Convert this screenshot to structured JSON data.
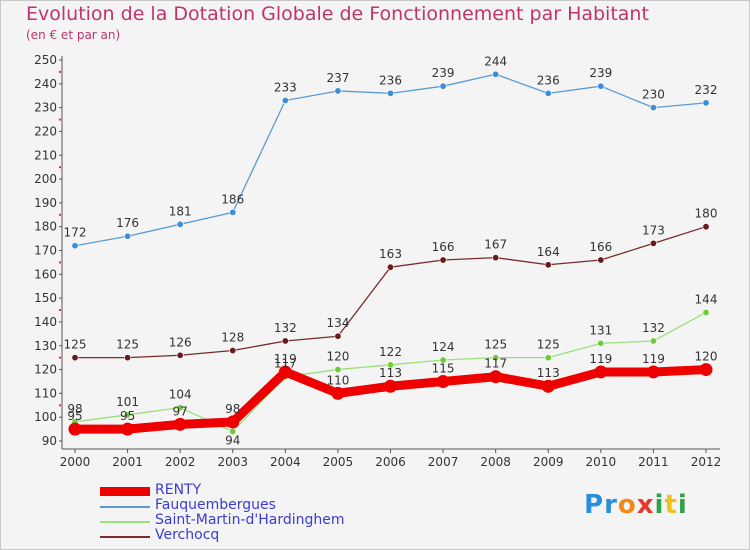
{
  "title": "Evolution de la Dotation Globale de Fonctionnement par Habitant",
  "subtitle": "(en € et par an)",
  "logo_text": "Proxiti",
  "chart_data": {
    "type": "line",
    "title": "Evolution de la Dotation Globale de Fonctionnement par Habitant",
    "ylabel": "(en € et par an)",
    "xlabel": "",
    "ylim": [
      90,
      250
    ],
    "ytick_step": 10,
    "grid": false,
    "legend": "bottom-left",
    "x": [
      "2000",
      "2001",
      "2002",
      "2003",
      "2004",
      "2005",
      "2006",
      "2007",
      "2008",
      "2009",
      "2010",
      "2011",
      "2012"
    ],
    "series": [
      {
        "name": "RENTY",
        "color": "#ee0000",
        "marker": "#ee0000",
        "thick": true,
        "values": [
          95,
          95,
          97,
          98,
          119,
          110,
          113,
          115,
          117,
          113,
          119,
          119,
          120
        ]
      },
      {
        "name": "Fauquembergues",
        "color": "#5b9bd5",
        "marker": "#3d8ed8",
        "thick": false,
        "values": [
          172,
          176,
          181,
          186,
          233,
          237,
          236,
          239,
          244,
          236,
          239,
          230,
          232
        ]
      },
      {
        "name": "Saint-Martin-d'Hardinghem",
        "color": "#9be07a",
        "marker": "#6ecc3a",
        "thick": false,
        "values": [
          98,
          101,
          104,
          94,
          117,
          120,
          122,
          124,
          125,
          125,
          131,
          132,
          144
        ]
      },
      {
        "name": "Verchocq",
        "color": "#7a2a2a",
        "marker": "#6a1a1a",
        "thick": false,
        "values": [
          125,
          125,
          126,
          128,
          132,
          134,
          163,
          166,
          167,
          164,
          166,
          173,
          180
        ]
      }
    ]
  }
}
